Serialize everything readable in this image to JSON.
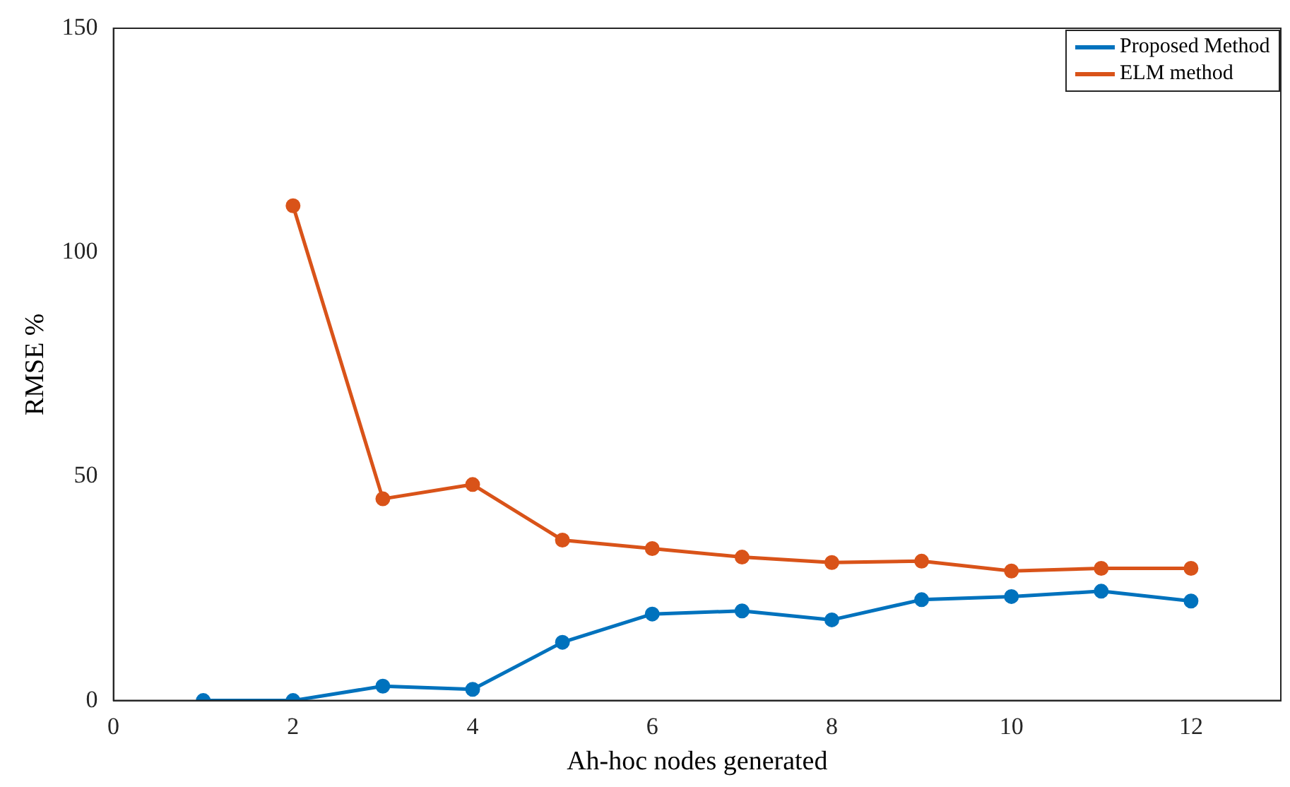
{
  "chart_data": {
    "type": "line",
    "xlabel": "Ah-hoc nodes generated",
    "ylabel": "RMSE %",
    "x": [
      1,
      2,
      3,
      4,
      5,
      6,
      7,
      8,
      9,
      10,
      11,
      12
    ],
    "series": [
      {
        "name": "Proposed Method",
        "color": "#0072bd",
        "values": [
          0,
          0,
          3.2,
          2.5,
          13,
          19.3,
          20,
          18,
          22.5,
          23.2,
          24.4,
          22.2
        ]
      },
      {
        "name": "ELM method",
        "color": "#d95319",
        "values": [
          null,
          110.4,
          45,
          48.2,
          35.8,
          33.9,
          32,
          30.8,
          31.1,
          28.9,
          29.5,
          29.5
        ]
      }
    ],
    "xlim": [
      0,
      13
    ],
    "xticks": [
      0,
      2,
      4,
      6,
      8,
      10,
      12
    ],
    "ylim": [
      0,
      150
    ],
    "yticks": [
      0,
      50,
      100,
      150
    ],
    "grid": false,
    "legend": "top right",
    "marker": "circle",
    "line_style": "solid"
  }
}
